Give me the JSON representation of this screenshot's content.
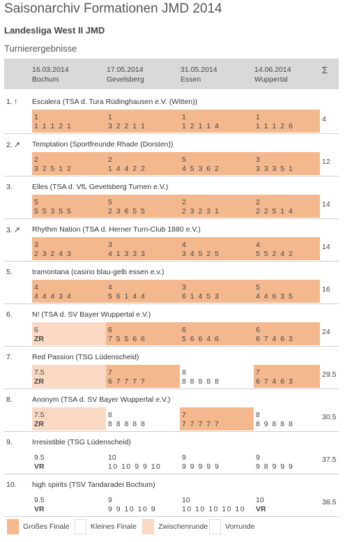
{
  "page_title": "Saisonarchiv Formationen JMD 2014",
  "league_title": "Landesliga West II JMD",
  "section_title": "Turnierergebnisse",
  "header": {
    "events": [
      {
        "date": "16.03.2014",
        "city": "Bochum"
      },
      {
        "date": "17.05.2014",
        "city": "Gevelsberg"
      },
      {
        "date": "31.05.2014",
        "city": "Essen"
      },
      {
        "date": "14.06.2014",
        "city": "Wuppertal"
      }
    ],
    "sum_symbol": "Σ"
  },
  "teams": [
    {
      "rank": "1.",
      "trend": "↑",
      "name": "Escalera (TSA d. Tura Rüdinghausen e.V. (Witten))",
      "total": "4",
      "results": [
        {
          "place": "1",
          "sub": "1 1 1 2 1",
          "round": "gf"
        },
        {
          "place": "1",
          "sub": "3 2 2 1 1",
          "round": "gf"
        },
        {
          "place": "1",
          "sub": "1 2 1 1 4",
          "round": "gf"
        },
        {
          "place": "1",
          "sub": "1 1 1 2 6",
          "round": "gf"
        }
      ]
    },
    {
      "rank": "2.",
      "trend": "↗",
      "name": "Temptation (Sportfreunde Rhade (Dorsten))",
      "total": "12",
      "results": [
        {
          "place": "2",
          "sub": "3 2 5 1 2",
          "round": "gf"
        },
        {
          "place": "2",
          "sub": "1 4 4 2 2",
          "round": "gf"
        },
        {
          "place": "5",
          "sub": "4 5 3 6 2",
          "round": "gf"
        },
        {
          "place": "3",
          "sub": "3 3 3 5 1",
          "round": "gf"
        }
      ]
    },
    {
      "rank": "3.",
      "trend": "",
      "name": "Elles (TSA d. VfL Gevelsberg Turnen e.V.)",
      "total": "14",
      "results": [
        {
          "place": "5",
          "sub": "5 5 3 5 5",
          "round": "gf"
        },
        {
          "place": "5",
          "sub": "2 3 6 5 5",
          "round": "gf"
        },
        {
          "place": "2",
          "sub": "2 3 2 3 1",
          "round": "gf"
        },
        {
          "place": "2",
          "sub": "2 2 5 1 4",
          "round": "gf"
        }
      ]
    },
    {
      "rank": "3.",
      "trend": "↗",
      "name": "Rhythm Nation (TSA d. Herner Turn-Club 1880 e.V.)",
      "total": "14",
      "results": [
        {
          "place": "3",
          "sub": "2 3 2 4 3",
          "round": "gf"
        },
        {
          "place": "3",
          "sub": "4 1 3 3 3",
          "round": "gf"
        },
        {
          "place": "4",
          "sub": "3 4 5 2 5",
          "round": "gf"
        },
        {
          "place": "4",
          "sub": "5 5 2 4 2",
          "round": "gf"
        }
      ]
    },
    {
      "rank": "5.",
      "trend": "",
      "name": "tramontana (casino blau-gelb essen e.v.)",
      "total": "16",
      "results": [
        {
          "place": "4",
          "sub": "4 4 4 3 4",
          "round": "gf"
        },
        {
          "place": "4",
          "sub": "5 6 1 4 4",
          "round": "gf"
        },
        {
          "place": "3",
          "sub": "6 1 4 5 3",
          "round": "gf"
        },
        {
          "place": "5",
          "sub": "4 4 6 3 5",
          "round": "gf"
        }
      ]
    },
    {
      "rank": "6.",
      "trend": "",
      "name": "N! (TSA d. SV Bayer Wuppertal e.V.)",
      "total": "24",
      "results": [
        {
          "place": "6",
          "sub": "ZR",
          "round": "zr"
        },
        {
          "place": "6",
          "sub": "7 5 5 6 6",
          "round": "gf"
        },
        {
          "place": "6",
          "sub": "5 6 6 4 6",
          "round": "gf"
        },
        {
          "place": "6",
          "sub": "6 7 4 6 3",
          "round": "gf"
        }
      ]
    },
    {
      "rank": "7.",
      "trend": "",
      "name": "Red Passion (TSG Lüdenscheid)",
      "total": "29.5",
      "results": [
        {
          "place": "7.5",
          "sub": "ZR",
          "round": "zr"
        },
        {
          "place": "7",
          "sub": "6 7 7 7 7",
          "round": "gf"
        },
        {
          "place": "8",
          "sub": "8 8 8 8 8",
          "round": "kf"
        },
        {
          "place": "7",
          "sub": "6 7 4 6 3",
          "round": "gf"
        }
      ]
    },
    {
      "rank": "8.",
      "trend": "",
      "name": "Anonym (TSA d. SV Bayer Wuppertal e.V.)",
      "total": "30.5",
      "results": [
        {
          "place": "7.5",
          "sub": "ZR",
          "round": "zr"
        },
        {
          "place": "8",
          "sub": "8 8 8 8 8",
          "round": "kf"
        },
        {
          "place": "7",
          "sub": "7 7 7 7 7",
          "round": "gf"
        },
        {
          "place": "8",
          "sub": "8 9 8 8 8",
          "round": "kf"
        }
      ]
    },
    {
      "rank": "9.",
      "trend": "",
      "name": "Irresistible (TSG Lüdenscheid)",
      "total": "37.5",
      "results": [
        {
          "place": "9.5",
          "sub": "VR",
          "round": "vr"
        },
        {
          "place": "10",
          "sub": "10 10 9 9 10",
          "round": "kf"
        },
        {
          "place": "9",
          "sub": "9 9 9 9 9",
          "round": "kf"
        },
        {
          "place": "9",
          "sub": "9 8 9 9 9",
          "round": "kf"
        }
      ]
    },
    {
      "rank": "10.",
      "trend": "",
      "name": "high spirits (TSV Tandaradei Bochum)",
      "total": "38.5",
      "results": [
        {
          "place": "9.5",
          "sub": "VR",
          "round": "vr"
        },
        {
          "place": "9",
          "sub": "9 9 10 10 9",
          "round": "kf"
        },
        {
          "place": "10",
          "sub": "10 10 10 10 10",
          "round": "kf"
        },
        {
          "place": "10",
          "sub": "VR",
          "round": "vr"
        }
      ]
    }
  ],
  "legend": [
    {
      "key": "gf",
      "label": "Großes Finale",
      "color": "#f4b88e"
    },
    {
      "key": "kf",
      "label": "Kleines Finale",
      "color": "#ffffff"
    },
    {
      "key": "zr",
      "label": "Zwischenrunde",
      "color": "#f9d9c3"
    },
    {
      "key": "vr",
      "label": "Vorrunde",
      "color": "#ffffff"
    }
  ]
}
